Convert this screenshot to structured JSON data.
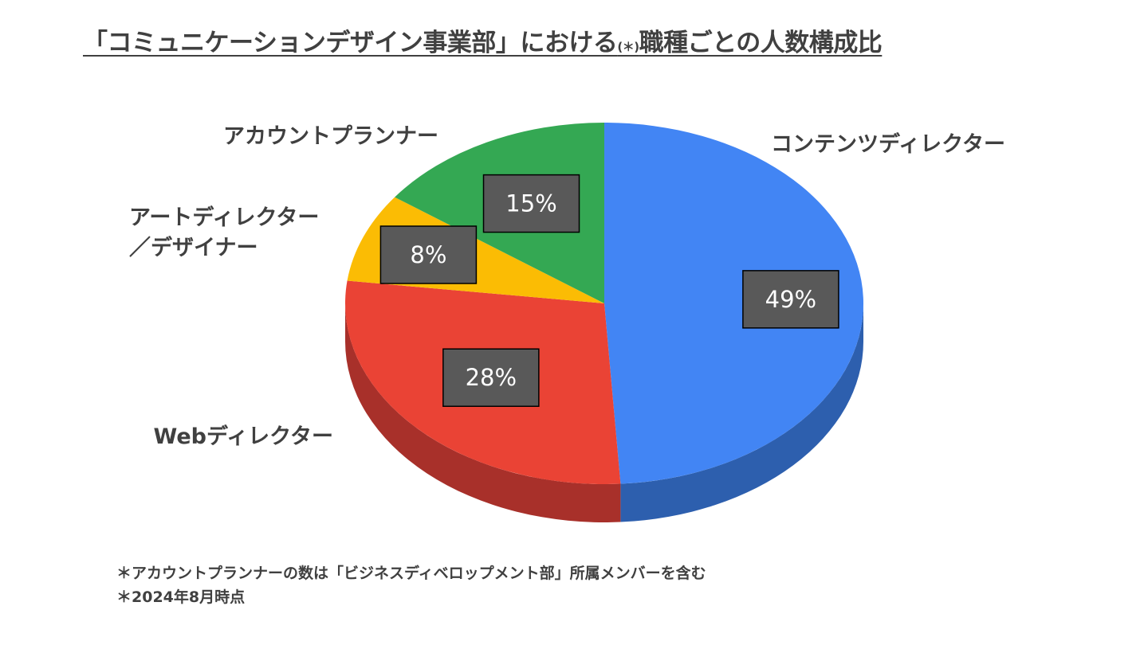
{
  "title": {
    "main": "「コミュニケーションデザイン事業部」における",
    "mark": "(＊)",
    "rest": "職種ごとの人数構成比"
  },
  "chart_data": {
    "type": "pie",
    "title": "「コミュニケーションデザイン事業部」における(＊)職種ごとの人数構成比",
    "categories": [
      "コンテンツディレクター",
      "Webディレクター",
      "アートディレクター／デザイナー",
      "アカウントプランナー"
    ],
    "values": [
      49,
      28,
      8,
      15
    ],
    "value_labels": [
      "49%",
      "28%",
      "8%",
      "15%"
    ],
    "label_lines": [
      [
        "コンテンツディレクター"
      ],
      [
        "Webディレクター"
      ],
      [
        "アートディレクター",
        "／デザイナー"
      ],
      [
        "アカウントプランナー"
      ]
    ],
    "colors": [
      "#4285f4",
      "#ea4335",
      "#fbbc04",
      "#34a853"
    ],
    "side_colors": [
      "#2d5fae",
      "#a8302a",
      "#b58806",
      "#237a3b"
    ],
    "label_box_color": "#595959",
    "start_angle_deg": 0,
    "direction": "clockwise",
    "style": "3d",
    "legend": "none"
  },
  "notes": [
    "＊アカウントプランナーの数は「ビジネスディベロップメント部」所属メンバーを含む",
    "＊2024年8月時点"
  ]
}
